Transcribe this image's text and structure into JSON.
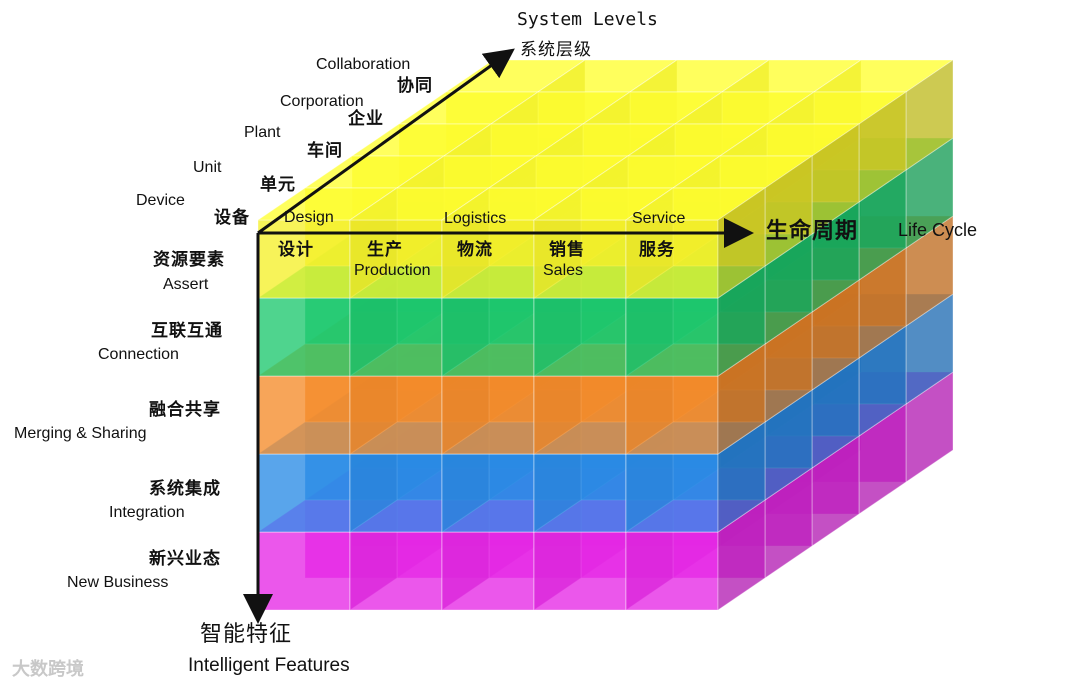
{
  "axes": {
    "system_levels": {
      "en": "System Levels",
      "zh": "系统层级"
    },
    "life_cycle": {
      "en": "Life Cycle",
      "zh": "生命周期"
    },
    "intelligent_features": {
      "en": "Intelligent Features",
      "zh": "智能特征"
    }
  },
  "system_levels": [
    {
      "en": "Device",
      "zh": "设备"
    },
    {
      "en": "Unit",
      "zh": "单元"
    },
    {
      "en": "Plant",
      "zh": "车间"
    },
    {
      "en": "Corporation",
      "zh": "企业"
    },
    {
      "en": "Collaboration",
      "zh": "协同"
    }
  ],
  "life_cycle": [
    {
      "en": "Design",
      "zh": "设计"
    },
    {
      "en": "Production",
      "zh": "生产"
    },
    {
      "en": "Logistics",
      "zh": "物流"
    },
    {
      "en": "Sales",
      "zh": "销售"
    },
    {
      "en": "Service",
      "zh": "服务"
    }
  ],
  "intelligent_features": [
    {
      "en": "Assert",
      "zh": "资源要素",
      "color": "#f5f02a"
    },
    {
      "en": "Connection",
      "zh": "互联互通",
      "color": "#1ec86e"
    },
    {
      "en": "Merging & Sharing",
      "zh": "融合共享",
      "color": "#f58c2a"
    },
    {
      "en": "Integration",
      "zh": "系统集成",
      "color": "#2a8ce6"
    },
    {
      "en": "New Business",
      "zh": "新兴业态",
      "color": "#e628e6"
    }
  ],
  "watermark": "大数跨境"
}
